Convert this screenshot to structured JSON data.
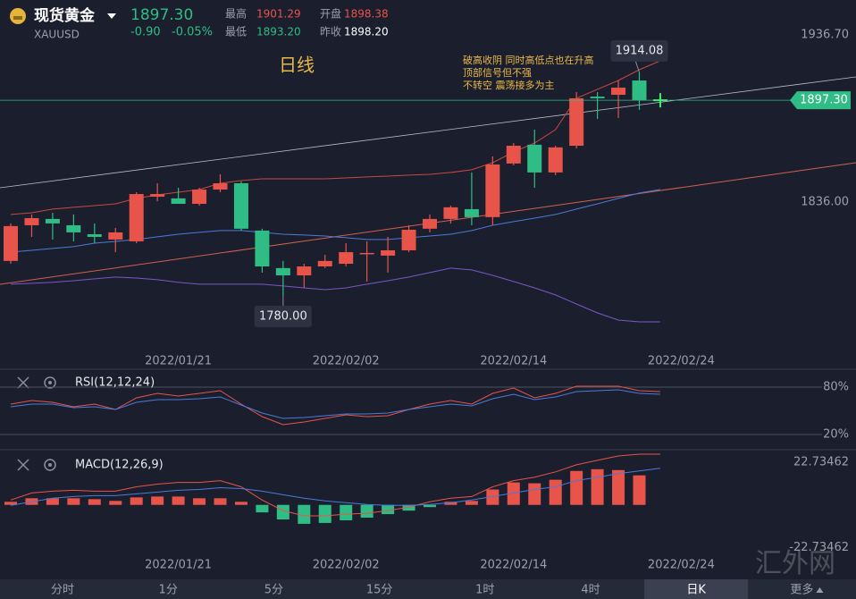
{
  "header": {
    "name": "现货黄金",
    "symbol": "XAUUSD",
    "price": "1897.30",
    "change": "-0.90",
    "change_pct": "-0.05%",
    "stats": [
      [
        "最高",
        "1901.29"
      ],
      [
        "开盘",
        "1898.38"
      ],
      [
        "最低",
        "1893.20"
      ],
      [
        "昨收",
        "1898.20"
      ]
    ]
  },
  "chart_data": [
    {
      "type": "candlestick",
      "period_label": "日线",
      "annotation": [
        "破高收阴 同时高低点也在升高",
        "顶部信号但不强",
        "不转空 震荡接多为主"
      ],
      "categories": [
        null,
        null,
        null,
        null,
        null,
        null,
        null,
        null,
        "2022/01/21",
        null,
        null,
        null,
        null,
        null,
        null,
        null,
        "2022/02/02",
        null,
        null,
        null,
        null,
        null,
        null,
        null,
        "2022/02/14",
        null,
        null,
        null,
        null,
        null,
        null,
        null,
        "2022/02/24"
      ],
      "open": [
        1800.5,
        1822.0,
        1825.8,
        1822.0,
        1816.6,
        1813.4,
        1812.3,
        1839.2,
        1838.2,
        1834.9,
        1843.5,
        1847.3,
        1818.8,
        1796.2,
        1791.8,
        1797.2,
        1798.8,
        1804.8,
        1803.7,
        1806.9,
        1819.9,
        1825.8,
        1831.7,
        1826.9,
        1859.2,
        1870.5,
        1853.8,
        1869.9,
        1899.5,
        1900.6,
        1909.2,
        null,
        null
      ],
      "high": [
        1823.1,
        1828.5,
        1829.5,
        1828.5,
        1823.1,
        1820.4,
        1841.9,
        1847.3,
        1844.6,
        1844.6,
        1852.7,
        1848.4,
        1819.9,
        1800.5,
        1798.8,
        1804.2,
        1811.2,
        1812.3,
        1815.0,
        1822.0,
        1828.5,
        1833.8,
        1853.8,
        1863.5,
        1871.5,
        1879.6,
        1869.9,
        1902.2,
        1902.2,
        1909.2,
        1914.08,
        null,
        null
      ],
      "low": [
        1798.8,
        1815.0,
        1813.4,
        1812.3,
        1811.2,
        1805.8,
        1811.2,
        1836.5,
        1834.9,
        1833.8,
        1841.9,
        1818.8,
        1793.5,
        1780,
        1784.3,
        1796.2,
        1797.2,
        1788.1,
        1793.5,
        1805.8,
        1817.7,
        1823.1,
        1822.0,
        1822.0,
        1858.1,
        1844.6,
        1852.2,
        1868.3,
        1886.1,
        1886.6,
        1891.5,
        null,
        null
      ],
      "close": [
        1821.5,
        1826.3,
        1823.1,
        1817.7,
        1815.0,
        1817.7,
        1840.8,
        1840.8,
        1834.9,
        1843.5,
        1847.3,
        1819.9,
        1797.2,
        1791.8,
        1797.2,
        1800.5,
        1805.8,
        1805.3,
        1806.9,
        1819.3,
        1825.8,
        1832.8,
        1826.9,
        1858.6,
        1869.9,
        1853.8,
        1868.9,
        1898.5,
        1898.5,
        1904.9,
        1897.4,
        null,
        null
      ],
      "up_color": "#e8534a",
      "down_color": "#2fbd85",
      "lines": [
        {
          "color": "#c8483f",
          "values": [
            1828.5,
            1829.5,
            1831.7,
            1832.8,
            1833.8,
            1834.9,
            1838.2,
            1840.3,
            1841.9,
            1843.5,
            1847.3,
            1848.9,
            1850.0,
            1850.0,
            1850.0,
            1850.0,
            1850.5,
            1851.1,
            1851.6,
            1852.2,
            1852.7,
            1853.8,
            1855.4,
            1859.7,
            1866.2,
            1871.5,
            1879.6,
            1898.5,
            1903.9,
            1909.2,
            1915.7,
            1921.1,
            null
          ]
        },
        {
          "color": "#4a7bd8",
          "values": [
            1805.8,
            1806.9,
            1808.0,
            1809.1,
            1811.2,
            1812.3,
            1813.4,
            1815.0,
            1816.6,
            1817.7,
            1818.8,
            1818.8,
            1817.7,
            1816.6,
            1816.1,
            1815.5,
            1814.5,
            1813.4,
            1813.4,
            1814.5,
            1815.5,
            1816.6,
            1818.8,
            1822.0,
            1824.2,
            1826.3,
            1828.5,
            1831.7,
            1834.9,
            1838.2,
            1841.4,
            1843.5,
            null
          ]
        },
        {
          "color": "#7b55c9",
          "values": [
            1786.5,
            1787.0,
            1787.6,
            1788.6,
            1789.7,
            1790.8,
            1790.2,
            1789.2,
            1787.6,
            1786.5,
            1786.5,
            1786.5,
            1786.5,
            1785.4,
            1784.3,
            1783.2,
            1784.3,
            1786.5,
            1788.6,
            1790.8,
            1793.5,
            1796.2,
            1795.1,
            1791.8,
            1788.1,
            1784.3,
            1780.0,
            1774.6,
            1769.2,
            1764.9,
            1763.8,
            1763.8,
            null
          ]
        }
      ],
      "ylim": [
        1735.8,
        1957.7
      ],
      "yticks": [
        {
          "value": 1936.7,
          "label": "1936.70"
        },
        {
          "value": 1836,
          "label": "1836.00"
        }
      ],
      "last_price": {
        "value": 1897.3,
        "label": "1897.30"
      },
      "extremes": {
        "high": 1914.08,
        "low": {
          "value": 1780,
          "label": "1780.00"
        }
      }
    },
    {
      "type": "line",
      "title": "RSI(12,12,24)",
      "series": [
        {
          "color": "#e8534a",
          "values": [
            58.5,
            63.0,
            60.7,
            55.1,
            58.5,
            51.7,
            66.4,
            72.1,
            68.7,
            72.1,
            75.5,
            58.5,
            42.6,
            32.4,
            35.8,
            40.4,
            44.9,
            42.6,
            43.8,
            51.7,
            58.5,
            63.0,
            58.5,
            72.1,
            78.9,
            66.4,
            72.1,
            81.1,
            81.1,
            81.1,
            75.5,
            74.3,
            null
          ]
        },
        {
          "color": "#4a7bd8",
          "values": [
            55.1,
            58.5,
            58.5,
            54.0,
            55.1,
            51.7,
            60.7,
            64.1,
            64.1,
            65.3,
            67.5,
            57.4,
            47.2,
            40.4,
            41.5,
            43.8,
            46.0,
            46.0,
            47.2,
            51.7,
            55.1,
            58.5,
            56.2,
            65.3,
            70.9,
            64.1,
            67.5,
            74.3,
            75.5,
            76.6,
            72.1,
            70.9,
            null
          ]
        }
      ],
      "ylim": [
        4.1,
        100.4
      ],
      "yticks": [
        {
          "value": 80,
          "label": "80%"
        },
        {
          "value": 20,
          "label": "20%"
        }
      ]
    },
    {
      "type": "bar",
      "title": "MACD(12,26,9)",
      "categories": [
        null,
        null,
        null,
        null,
        null,
        null,
        null,
        null,
        "2022/01/21",
        null,
        null,
        null,
        null,
        null,
        null,
        null,
        "2022/02/02",
        null,
        null,
        null,
        null,
        null,
        null,
        null,
        "2022/02/14",
        null,
        null,
        null,
        null,
        null,
        null,
        null,
        "2022/02/24"
      ],
      "values": [
        1.64,
        3.52,
        3.52,
        3.52,
        3.05,
        2.11,
        3.98,
        4.45,
        4.45,
        3.52,
        3.52,
        1.64,
        -3.98,
        -7.74,
        -10.08,
        -9.61,
        -8.2,
        -6.8,
        -4.92,
        -3.05,
        -1.17,
        1.64,
        2.11,
        8.2,
        11.95,
        11.49,
        13.36,
        18.05,
        18.99,
        18.52,
        15.71,
        null,
        null
      ],
      "up_color": "#e8534a",
      "down_color": "#2fbd85",
      "lines": [
        {
          "color": "#e8534a",
          "values": [
            2.58,
            6.33,
            7.27,
            7.74,
            7.27,
            7.27,
            9.61,
            11.02,
            11.95,
            11.95,
            12.89,
            9.61,
            2.58,
            -3.05,
            -5.86,
            -5.86,
            -4.92,
            -4.45,
            -3.05,
            -1.17,
            1.64,
            3.52,
            4.45,
            9.61,
            12.89,
            14.77,
            17.58,
            21.33,
            23.68,
            26.02,
            26.96,
            26.96,
            null
          ]
        },
        {
          "color": "#4a7bd8",
          "values": [
            -0.23,
            1.64,
            3.52,
            4.45,
            4.92,
            4.92,
            5.86,
            6.8,
            7.74,
            8.2,
            9.14,
            8.67,
            7.27,
            5.39,
            3.52,
            2.11,
            1.17,
            0.23,
            -0.23,
            -0.23,
            0.23,
            1.17,
            2.58,
            4.45,
            6.33,
            8.2,
            9.61,
            12.89,
            14.77,
            16.64,
            18.05,
            19.46,
            null
          ]
        }
      ],
      "ylim": [
        -39.6,
        28.4
      ],
      "yticks": [
        22.73462,
        -22.73462
      ]
    }
  ],
  "tabs": [
    "分时",
    "1分",
    "5分",
    "15分",
    "1时",
    "4时",
    "日K",
    "更多"
  ],
  "selected_tab": 6,
  "watermark": "汇外网"
}
